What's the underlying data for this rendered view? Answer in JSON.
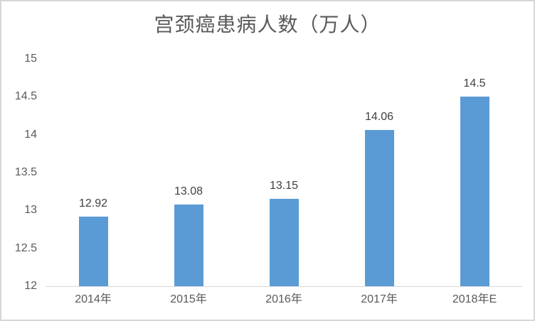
{
  "window": {
    "background": "#ffffff",
    "border_color": "#d6d6d6"
  },
  "chart_data": {
    "type": "bar",
    "title": "宫颈癌患病人数（万人）",
    "categories": [
      "2014年",
      "2015年",
      "2016年",
      "2017年",
      "2018年E"
    ],
    "values": [
      12.92,
      13.08,
      13.15,
      14.06,
      14.5
    ],
    "data_labels": [
      "12.92",
      "13.08",
      "13.15",
      "14.06",
      "14.5"
    ],
    "xlabel": "",
    "ylabel": "",
    "ylim": [
      12,
      15
    ],
    "y_ticks": [
      15,
      14.5,
      14,
      13.5,
      13,
      12.5,
      12
    ],
    "y_tick_labels": [
      "15",
      "14.5",
      "14",
      "13.5",
      "13",
      "12.5",
      "12"
    ],
    "grid": false,
    "legend": false,
    "bar_color": "#5b9bd5",
    "axis_line_color": "#d9d9d9",
    "axis_text_color": "#595959",
    "data_label_color": "#404040",
    "title_color": "#595959"
  }
}
